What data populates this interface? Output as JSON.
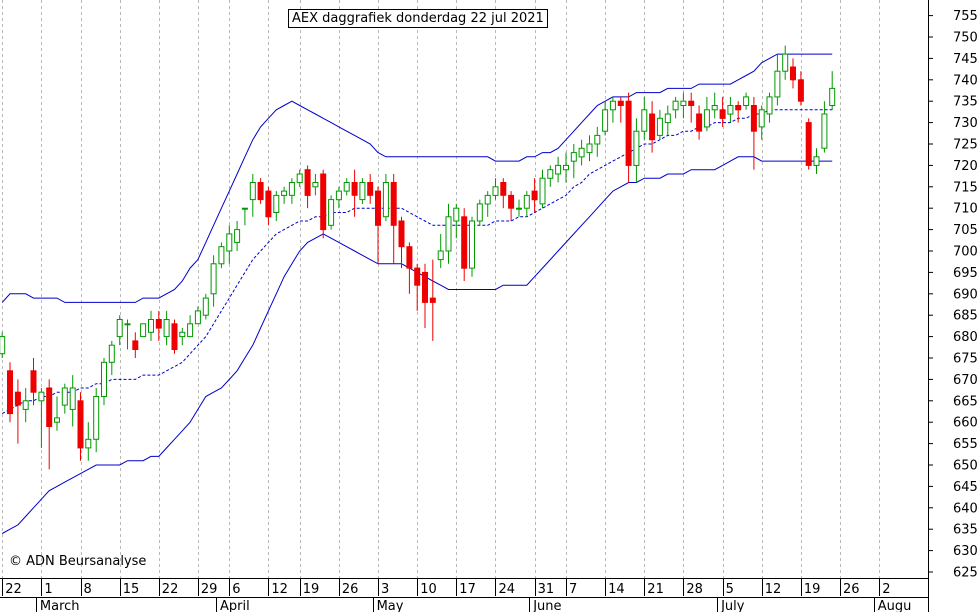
{
  "chart_data": {
    "type": "candlestick",
    "title": "AEX daggrafiek donderdag 22 jul 2021",
    "copyright": "© ADN Beursanalyse",
    "ylim": [
      621,
      757
    ],
    "y_ticks": [
      625,
      630,
      635,
      640,
      645,
      650,
      655,
      660,
      665,
      670,
      675,
      680,
      685,
      690,
      695,
      700,
      705,
      710,
      715,
      720,
      725,
      730,
      735,
      740,
      745,
      750,
      755
    ],
    "grid": "vertical dashed at day ticks",
    "x_day_labels": [
      "22",
      "1",
      "8",
      "15",
      "22",
      "29",
      "6",
      "12",
      "19",
      "26",
      "3",
      "10",
      "17",
      "24",
      "31",
      "7",
      "14",
      "21",
      "28",
      "5",
      "12",
      "19",
      "26",
      "2"
    ],
    "x_day_label_trading_index": [
      0,
      5,
      10,
      15,
      20,
      25,
      29,
      34,
      38,
      43,
      48,
      53,
      58,
      63,
      68,
      72,
      77,
      82,
      87,
      92,
      97,
      102,
      107,
      112
    ],
    "x_months": [
      {
        "label": "March",
        "trading_index": 4.3
      },
      {
        "label": "April",
        "trading_index": 27.3
      },
      {
        "label": "May",
        "trading_index": 47.3
      },
      {
        "label": "June",
        "trading_index": 67.3
      },
      {
        "label": "July",
        "trading_index": 91.3
      },
      {
        "label": "Augu",
        "trading_index": 111.3
      }
    ],
    "candle_colors": {
      "up": "#009900",
      "down": "#ee0000"
    },
    "band_color": "#0000cc",
    "candles": [
      [
        676,
        680,
        675,
        681
      ],
      [
        672,
        662,
        660,
        674
      ],
      [
        667,
        664,
        655,
        670
      ],
      [
        663,
        665,
        660,
        668
      ],
      [
        672,
        667,
        664,
        675
      ],
      [
        665,
        667,
        654,
        668
      ],
      [
        668,
        659,
        649,
        670
      ],
      [
        660,
        661,
        658,
        666
      ],
      [
        664,
        668,
        662,
        669
      ],
      [
        663,
        668,
        659,
        671
      ],
      [
        665,
        654,
        651,
        667
      ],
      [
        654,
        656,
        651,
        660
      ],
      [
        656,
        666,
        653,
        668
      ],
      [
        666,
        674,
        664,
        675
      ],
      [
        674,
        678,
        671,
        679
      ],
      [
        680,
        684,
        678,
        685
      ],
      [
        683,
        683,
        677,
        684
      ],
      [
        679,
        677,
        675,
        681
      ],
      [
        680,
        683,
        680,
        683
      ],
      [
        681,
        684,
        679,
        686
      ],
      [
        684,
        682,
        679,
        686
      ],
      [
        680,
        684,
        678,
        686
      ],
      [
        683,
        677,
        676,
        684
      ],
      [
        680,
        681,
        678,
        682
      ],
      [
        680,
        683,
        680,
        685
      ],
      [
        683,
        686,
        683,
        687
      ],
      [
        685,
        689,
        684,
        690
      ],
      [
        690,
        697,
        687,
        699
      ],
      [
        697,
        701,
        696,
        702
      ],
      [
        700,
        704,
        697,
        706
      ],
      [
        702,
        705,
        700,
        707
      ],
      [
        710,
        710,
        706,
        710
      ],
      [
        712,
        716,
        708,
        718
      ],
      [
        716,
        712,
        711,
        717
      ],
      [
        714,
        708,
        706,
        715
      ],
      [
        709,
        713,
        707,
        714
      ],
      [
        713,
        714,
        711,
        715
      ],
      [
        713,
        716,
        711,
        717
      ],
      [
        716,
        718,
        715,
        719
      ],
      [
        719,
        713,
        710,
        720
      ],
      [
        715,
        716,
        713,
        718
      ],
      [
        718,
        705,
        703,
        719
      ],
      [
        706,
        712,
        705,
        713
      ],
      [
        712,
        714,
        710,
        715
      ],
      [
        714,
        716,
        713,
        717
      ],
      [
        716,
        713,
        708,
        719
      ],
      [
        712,
        716,
        711,
        717
      ],
      [
        716,
        713,
        711,
        718
      ],
      [
        714,
        706,
        697,
        715
      ],
      [
        708,
        716,
        707,
        718
      ],
      [
        716,
        706,
        697,
        718
      ],
      [
        707,
        701,
        696,
        708
      ],
      [
        701,
        696,
        690,
        702
      ],
      [
        696,
        692,
        686,
        697
      ],
      [
        695,
        688,
        682,
        697
      ],
      [
        689,
        688,
        679,
        698
      ],
      [
        698,
        700,
        696,
        704
      ],
      [
        700,
        708,
        697,
        711
      ],
      [
        707,
        710,
        703,
        711
      ],
      [
        708,
        696,
        693,
        710
      ],
      [
        696,
        707,
        694,
        708
      ],
      [
        707,
        711,
        706,
        712
      ],
      [
        711,
        713,
        708,
        714
      ],
      [
        713,
        715,
        712,
        717
      ],
      [
        716,
        713,
        710,
        717
      ],
      [
        713,
        710,
        707,
        714
      ],
      [
        710,
        710,
        708,
        712
      ],
      [
        710,
        713,
        708,
        714
      ],
      [
        714,
        712,
        709,
        717
      ],
      [
        711,
        717,
        710,
        719
      ],
      [
        717,
        719,
        715,
        720
      ],
      [
        718,
        720,
        716,
        722
      ],
      [
        719,
        720,
        716,
        723
      ],
      [
        721,
        723,
        717,
        725
      ],
      [
        722,
        724,
        720,
        726
      ],
      [
        723,
        725,
        721,
        727
      ],
      [
        725,
        727,
        722,
        729
      ],
      [
        728,
        733,
        727,
        735
      ],
      [
        733,
        735,
        730,
        736
      ],
      [
        735,
        734,
        730,
        736
      ],
      [
        735,
        720,
        716,
        737
      ],
      [
        720,
        728,
        716,
        731
      ],
      [
        728,
        733,
        726,
        736
      ],
      [
        732,
        726,
        723,
        735
      ],
      [
        727,
        731,
        726,
        733
      ],
      [
        730,
        732,
        727,
        734
      ],
      [
        733,
        735,
        731,
        736
      ],
      [
        734,
        735,
        731,
        737
      ],
      [
        735,
        734,
        730,
        737
      ],
      [
        732,
        728,
        726,
        734
      ],
      [
        729,
        733,
        728,
        736
      ],
      [
        733,
        734,
        731,
        737
      ],
      [
        733,
        731,
        729,
        736
      ],
      [
        732,
        734,
        730,
        736
      ],
      [
        734,
        733,
        730,
        735
      ],
      [
        734,
        736,
        733,
        737
      ],
      [
        734,
        728,
        719,
        736
      ],
      [
        729,
        733,
        726,
        734
      ],
      [
        732,
        736,
        730,
        737
      ],
      [
        736,
        742,
        734,
        746
      ],
      [
        742,
        746,
        740,
        748
      ],
      [
        743,
        740,
        738,
        745
      ],
      [
        740,
        735,
        734,
        742
      ],
      [
        730,
        720,
        719,
        731
      ],
      [
        720,
        722,
        718,
        724
      ],
      [
        724,
        732,
        723,
        735
      ],
      [
        734,
        738,
        733,
        742
      ]
    ],
    "bands_upper": [
      688,
      690,
      690,
      690,
      689,
      689,
      689,
      689,
      688,
      688,
      688,
      688,
      688,
      688,
      688,
      688,
      688,
      688,
      689,
      689,
      689,
      690,
      691,
      693,
      696,
      698,
      702,
      706,
      710,
      714,
      718,
      722,
      726,
      729,
      731,
      733,
      734,
      735,
      734,
      733,
      732,
      731,
      730,
      729,
      728,
      727,
      726,
      725,
      723,
      722,
      722,
      722,
      722,
      722,
      722,
      722,
      722,
      722,
      722,
      722,
      722,
      722,
      722,
      721,
      721,
      721,
      721,
      722,
      722,
      723,
      723,
      724,
      726,
      728,
      730,
      732,
      734,
      735,
      736,
      736,
      736,
      737,
      737,
      737,
      737,
      738,
      738,
      738,
      738,
      739,
      739,
      739,
      739,
      739,
      740,
      741,
      742,
      744,
      745,
      746,
      746,
      746,
      746,
      746,
      746,
      746,
      746
    ],
    "bands_middle": [
      662,
      663,
      664,
      665,
      665,
      666,
      666,
      667,
      667,
      667,
      668,
      668,
      669,
      669,
      670,
      670,
      670,
      670,
      671,
      671,
      671,
      672,
      673,
      674,
      676,
      678,
      680,
      683,
      686,
      689,
      692,
      695,
      698,
      700,
      702,
      704,
      705,
      706,
      707,
      707,
      708,
      708,
      709,
      709,
      709,
      710,
      710,
      710,
      710,
      710,
      710,
      710,
      709,
      708,
      707,
      706,
      706,
      706,
      706,
      706,
      706,
      706,
      706,
      707,
      707,
      707,
      708,
      708,
      709,
      710,
      711,
      712,
      713,
      715,
      716,
      718,
      719,
      720,
      721,
      722,
      723,
      724,
      725,
      725,
      726,
      727,
      727,
      728,
      728,
      729,
      729,
      730,
      730,
      730,
      731,
      731,
      732,
      732,
      733,
      733,
      733,
      733,
      733,
      733,
      733,
      733,
      733
    ],
    "bands_lower": [
      634,
      635,
      636,
      638,
      640,
      642,
      644,
      645,
      646,
      647,
      648,
      649,
      650,
      650,
      650,
      650,
      651,
      651,
      651,
      652,
      652,
      654,
      656,
      658,
      660,
      663,
      666,
      667,
      668,
      670,
      672,
      675,
      678,
      682,
      686,
      690,
      694,
      697,
      700,
      702,
      703,
      704,
      703,
      702,
      701,
      700,
      699,
      698,
      697,
      697,
      697,
      697,
      696,
      695,
      694,
      693,
      692,
      691,
      691,
      691,
      691,
      691,
      691,
      691,
      692,
      692,
      692,
      692,
      694,
      696,
      698,
      700,
      702,
      704,
      706,
      708,
      710,
      712,
      714,
      715,
      716,
      716,
      717,
      717,
      717,
      718,
      718,
      718,
      719,
      719,
      719,
      719,
      720,
      721,
      722,
      722,
      722,
      721,
      721,
      721,
      721,
      721,
      721,
      721,
      721,
      721,
      721
    ]
  }
}
